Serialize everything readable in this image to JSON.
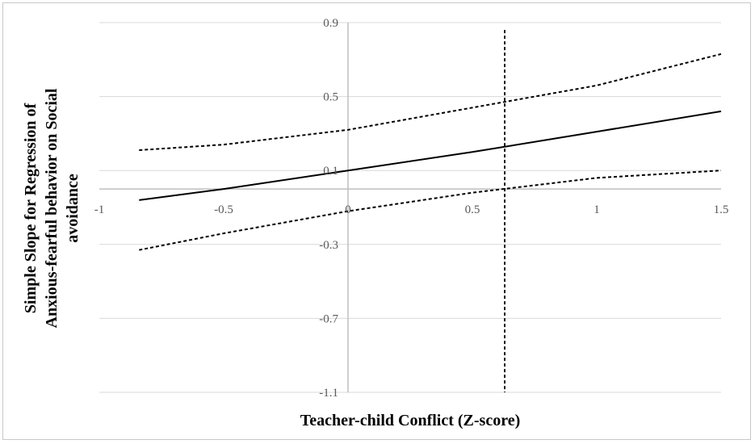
{
  "chart_data": {
    "type": "line",
    "title": "",
    "xlabel": "Teacher-child Conflict (Z-score)",
    "ylabel_lines": [
      "Simple Slope for Regression of",
      "Anxious-fearful behavior on Social",
      "avoidance"
    ],
    "xlim": [
      -1,
      1.5
    ],
    "ylim": [
      -1.1,
      0.9
    ],
    "x_ticks": [
      -1,
      -0.5,
      0,
      0.5,
      1,
      1.5
    ],
    "x_tick_labels": [
      "-1",
      "-0.5",
      "0",
      "0.5",
      "1",
      "1.5"
    ],
    "y_ticks": [
      0.9,
      0.5,
      0.1,
      -0.3,
      -0.7,
      -1.1
    ],
    "y_tick_labels": [
      "0.9",
      "0.5",
      "0.1",
      "-0.3",
      "-0.7",
      "-1.1"
    ],
    "x_axis_crosses_y_at": 0,
    "grid": "horizontal",
    "legend": "none",
    "colors": {
      "line": "#000000",
      "grid": "#d9d9d9",
      "axis": "#bfbfbf",
      "tick_text": "#595959"
    },
    "series": [
      {
        "style": "solid",
        "x": [
          -0.84,
          -0.5,
          0,
          0.5,
          1,
          1.5
        ],
        "y": [
          -0.06,
          0.0,
          0.1,
          0.2,
          0.31,
          0.42
        ]
      },
      {
        "style": "dashed",
        "x": [
          -0.84,
          -0.5,
          0,
          0.5,
          1,
          1.5
        ],
        "y": [
          0.21,
          0.24,
          0.32,
          0.44,
          0.56,
          0.73
        ]
      },
      {
        "style": "dashed",
        "x": [
          -0.84,
          -0.5,
          0,
          0.5,
          1,
          1.5
        ],
        "y": [
          -0.33,
          -0.24,
          -0.12,
          -0.02,
          0.06,
          0.1
        ]
      }
    ],
    "reference_lines": [
      {
        "orientation": "vertical",
        "style": "dashed",
        "x": 0.63,
        "y_range": [
          -1.1,
          0.86
        ]
      }
    ]
  }
}
